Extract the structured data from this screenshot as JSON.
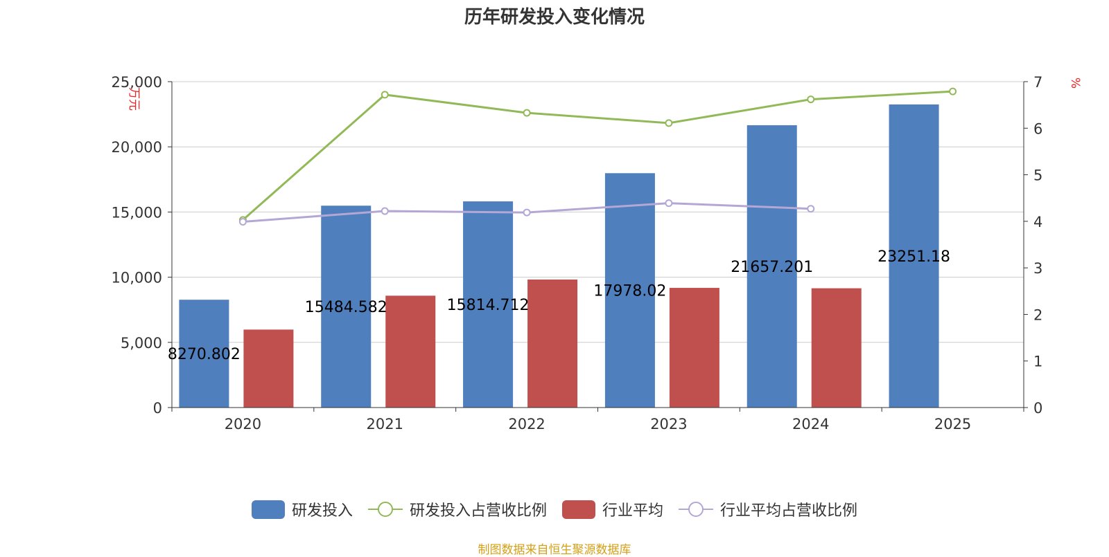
{
  "chart_data": {
    "type": "bar",
    "title": "历年研发投入变化情况",
    "categories": [
      "2020",
      "2021",
      "2022",
      "2023",
      "2024",
      "2025"
    ],
    "left_axis": {
      "unit": "万元",
      "ylim": [
        0,
        25000
      ],
      "ticks": [
        "0",
        "5,000",
        "10,000",
        "15,000",
        "20,000",
        "25,000"
      ]
    },
    "right_axis": {
      "unit": "%",
      "ylim": [
        0,
        7
      ],
      "ticks": [
        "0",
        "1",
        "2",
        "3",
        "4",
        "5",
        "6",
        "7"
      ]
    },
    "series": [
      {
        "name": "研发投入",
        "kind": "bar",
        "axis": "left",
        "color": "#4f7fbd",
        "values": [
          8270.802,
          15484.582,
          15814.712,
          17978.02,
          21657.201,
          23251.18
        ],
        "labels": [
          "8270.802",
          "15484.582",
          "15814.712",
          "17978.02",
          "21657.201",
          "23251.18"
        ]
      },
      {
        "name": "研发投入占营收比例",
        "kind": "line",
        "axis": "right",
        "color": "#92b957",
        "values": [
          4.03,
          6.72,
          6.33,
          6.11,
          6.62,
          6.79
        ]
      },
      {
        "name": "行业平均",
        "kind": "bar",
        "axis": "left",
        "color": "#c0504d",
        "values": [
          5980,
          8580,
          9820,
          9180,
          9150,
          null
        ]
      },
      {
        "name": "行业平均占营收比例",
        "kind": "line",
        "axis": "right",
        "color": "#b4a7d6",
        "values": [
          3.99,
          4.22,
          4.19,
          4.39,
          4.27,
          null
        ]
      }
    ],
    "grid": true,
    "legend_position": "bottom"
  },
  "source_note": "制图数据来自恒生聚源数据库"
}
